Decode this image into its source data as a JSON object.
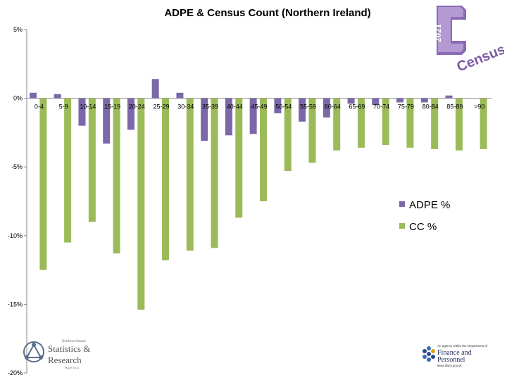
{
  "chart_data": {
    "type": "bar",
    "title": "ADPE & Census Count (Northern Ireland)",
    "categories": [
      "0-4",
      "5-9",
      "10-14",
      "15-19",
      "20-24",
      "25-29",
      "30-34",
      "35-39",
      "40-44",
      "45-49",
      "50-54",
      "55-59",
      "60-64",
      "65-69",
      "70-74",
      "75-79",
      "80-84",
      "85-89",
      ">90"
    ],
    "series": [
      {
        "name": "ADPE %",
        "color": "#7b68a8",
        "values": [
          0.4,
          0.3,
          -2.0,
          -3.3,
          -2.3,
          1.4,
          0.4,
          -3.1,
          -2.7,
          -2.6,
          -1.1,
          -1.7,
          -1.4,
          -0.4,
          -0.5,
          -0.3,
          -0.3,
          0.2,
          0.0
        ]
      },
      {
        "name": "CC %",
        "color": "#9bbb59",
        "values": [
          -12.5,
          -10.5,
          -9.0,
          -11.3,
          -15.4,
          -11.8,
          -11.1,
          -10.9,
          -8.7,
          -7.5,
          -5.3,
          -4.7,
          -3.8,
          -3.6,
          -3.4,
          -3.6,
          -3.7,
          -3.8,
          -3.7
        ]
      }
    ],
    "y_tick_labels": [
      "5%",
      "0%",
      "-5%",
      "-10%",
      "-15%",
      "-20%"
    ],
    "y_tick_values": [
      5,
      0,
      -5,
      -10,
      -15,
      -20
    ],
    "ylim": [
      -20,
      5
    ],
    "grid": false,
    "legend_position": "right"
  },
  "logos": {
    "census_text": "Census",
    "census_year": "2021",
    "nisra_line1": "Northern Ireland",
    "nisra_line2": "Statistics &",
    "nisra_line3": "Research",
    "nisra_line4": "Agency",
    "dfp_line1": "An agency within the Department of",
    "dfp_line2": "Finance and",
    "dfp_line3": "Personnel",
    "dfp_line4": "www.dfpni.gov.uk"
  }
}
